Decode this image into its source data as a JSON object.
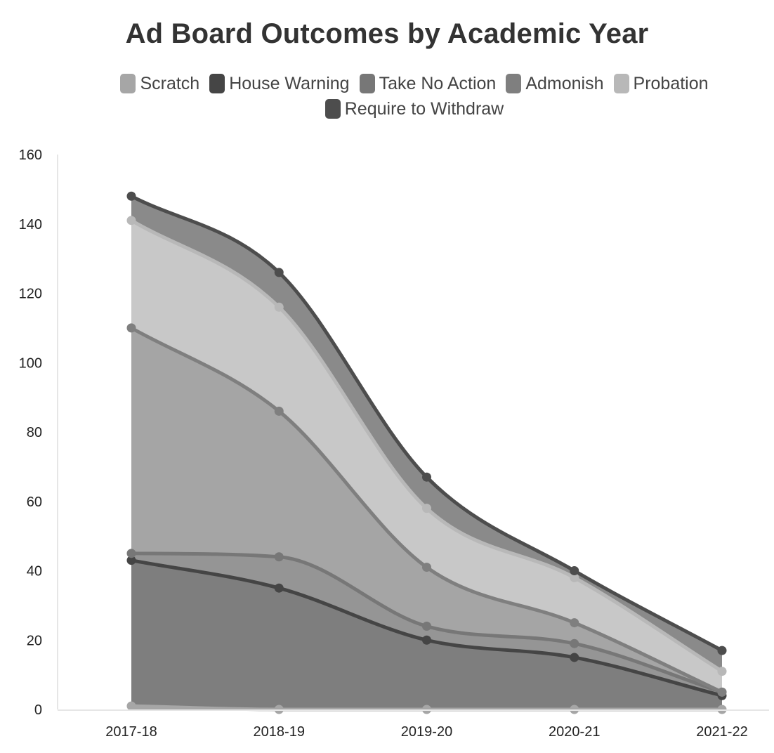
{
  "chart_data": {
    "type": "area",
    "stacked": true,
    "title": "Ad Board Outcomes by Academic Year",
    "categories": [
      "2017-18",
      "2018-19",
      "2019-20",
      "2020-21",
      "2021-22"
    ],
    "ylim": [
      0,
      160
    ],
    "yticks": [
      0,
      20,
      40,
      60,
      80,
      100,
      120,
      140,
      160
    ],
    "grid": false,
    "legend_position": "top",
    "series": [
      {
        "name": "Scratch",
        "values": [
          1,
          0,
          0,
          0,
          0
        ],
        "color": "#a6a6a6",
        "line": "#a6a6a6"
      },
      {
        "name": "House Warning",
        "values": [
          42,
          35,
          20,
          15,
          4
        ],
        "color": "#7e7e7e",
        "line": "#454545"
      },
      {
        "name": "Take No Action",
        "values": [
          2,
          9,
          4,
          4,
          1
        ],
        "color": "#959595",
        "line": "#777777"
      },
      {
        "name": "Admonish",
        "values": [
          65,
          42,
          17,
          6,
          0
        ],
        "color": "#a5a5a5",
        "line": "#7f7f7f"
      },
      {
        "name": "Probation",
        "values": [
          31,
          30,
          17,
          13,
          6
        ],
        "color": "#c8c8c8",
        "line": "#b8b8b8"
      },
      {
        "name": "Require to Withdraw",
        "values": [
          7,
          10,
          9,
          2,
          6
        ],
        "color": "#8a8a8a",
        "line": "#4d4d4d"
      }
    ]
  }
}
